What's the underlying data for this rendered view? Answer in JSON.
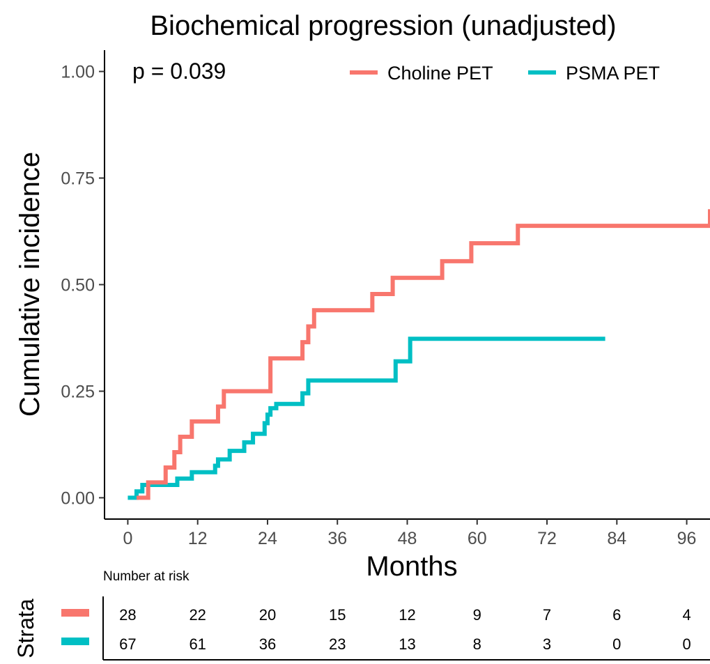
{
  "chart_data": {
    "type": "line",
    "title": "Biochemical progression (unadjusted)",
    "xlabel": "Months",
    "ylabel": "Cumulative incidence",
    "xlim": [
      -4,
      100
    ],
    "ylim": [
      -0.05,
      1.05
    ],
    "x_ticks": [
      "0",
      "12",
      "24",
      "36",
      "48",
      "60",
      "72",
      "84",
      "96"
    ],
    "x_tick_values": [
      0,
      12,
      24,
      36,
      48,
      60,
      72,
      84,
      96
    ],
    "y_ticks": [
      "0.00",
      "0.25",
      "0.50",
      "0.75",
      "1.00"
    ],
    "y_tick_values": [
      0,
      0.25,
      0.5,
      0.75,
      1.0
    ],
    "annotation": "p = 0.039",
    "legend_position": "top-right",
    "grid": false,
    "series": [
      {
        "name": "Choline PET",
        "color": "#F8766D",
        "x": [
          1.5,
          3.5,
          6.5,
          8,
          9,
          11,
          15.5,
          16.5,
          24.5,
          30,
          31,
          32,
          42,
          45.5,
          54,
          59,
          67,
          100
        ],
        "y": [
          0,
          0.036,
          0.071,
          0.107,
          0.143,
          0.179,
          0.214,
          0.25,
          0.327,
          0.365,
          0.402,
          0.44,
          0.478,
          0.516,
          0.555,
          0.597,
          0.638,
          0.677
        ]
      },
      {
        "name": "PSMA PET",
        "color": "#00BFC4",
        "x": [
          0,
          1.5,
          2.5,
          5,
          8.5,
          11,
          15,
          15.5,
          16,
          17.5,
          20,
          21.5,
          23.5,
          24,
          24.5,
          25.5,
          30,
          31,
          46,
          48.5,
          82
        ],
        "y": [
          0,
          0.015,
          0.03,
          0.03,
          0.045,
          0.06,
          0.075,
          0.09,
          0.09,
          0.11,
          0.13,
          0.15,
          0.175,
          0.195,
          0.21,
          0.22,
          0.245,
          0.275,
          0.32,
          0.373,
          0.373
        ]
      }
    ]
  },
  "risk_table": {
    "title": "Number at risk",
    "strata_label": "Strata",
    "rows": [
      {
        "color": "#F8766D",
        "values": [
          "28",
          "22",
          "20",
          "15",
          "12",
          "9",
          "7",
          "6",
          "4"
        ]
      },
      {
        "color": "#00BFC4",
        "values": [
          "67",
          "61",
          "36",
          "23",
          "13",
          "8",
          "3",
          "0",
          "0"
        ]
      }
    ]
  }
}
